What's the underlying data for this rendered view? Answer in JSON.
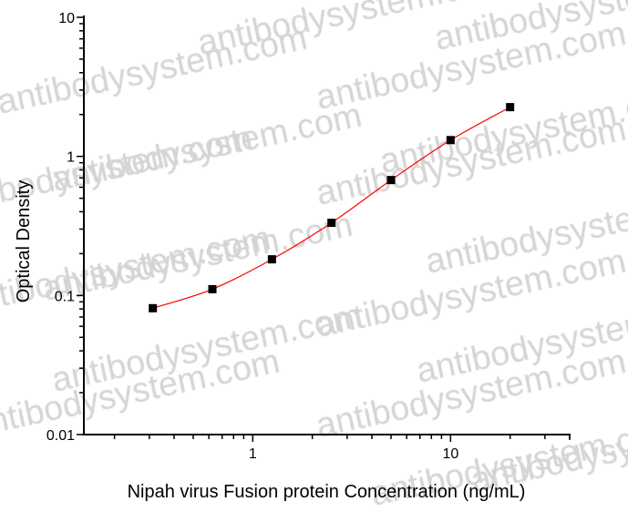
{
  "watermark": "antibodysystem.com",
  "chart_data": {
    "type": "line",
    "title": "",
    "xlabel": "Nipah virus Fusion protein Concentration (ng/mL)",
    "ylabel": "Optical Density",
    "xscale": "log",
    "yscale": "log",
    "xlim": [
      0.14,
      40
    ],
    "ylim": [
      0.01,
      10
    ],
    "xticks": [
      {
        "value": 1,
        "label": "1"
      },
      {
        "value": 10,
        "label": "10"
      }
    ],
    "yticks": [
      {
        "value": 0.01,
        "label": "0.01"
      },
      {
        "value": 0.1,
        "label": "0.1"
      },
      {
        "value": 1,
        "label": "1"
      },
      {
        "value": 10,
        "label": "10"
      }
    ],
    "grid": false,
    "legend": "none",
    "series": [
      {
        "x": [
          0.3125,
          0.625,
          1.25,
          2.5,
          5,
          10,
          20
        ],
        "y": [
          0.081,
          0.111,
          0.182,
          0.333,
          0.676,
          1.31,
          2.26
        ],
        "marker": "square",
        "marker_color": "#000000",
        "line_color": "#ff0000",
        "fit": "smooth curve"
      }
    ]
  }
}
